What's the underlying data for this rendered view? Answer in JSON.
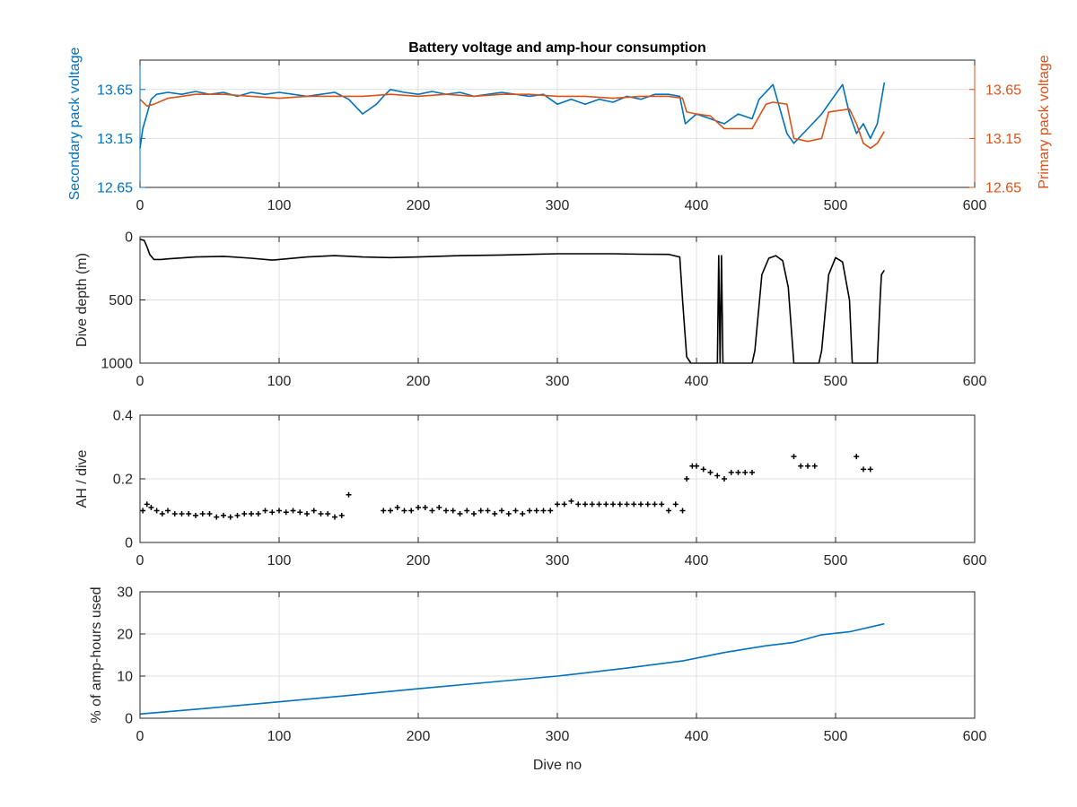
{
  "figure": {
    "title": "Battery voltage and amp-hour consumption",
    "xlabel": "Dive no"
  },
  "colors": {
    "blue": "#0072BD",
    "orange": "#D95319",
    "black": "#000000",
    "axis": "#262626",
    "grid": "#dfdfdf"
  },
  "chart_data": [
    {
      "type": "line",
      "title": "Battery voltage and amp-hour consumption",
      "xlabel": "",
      "ylabel": "Secondary pack voltage",
      "ylabel_right": "Primary pack voltage",
      "xlim": [
        0,
        600
      ],
      "ylim": [
        12.65,
        13.95
      ],
      "xticks": [
        0,
        100,
        200,
        300,
        400,
        500,
        600
      ],
      "yticks": [
        12.65,
        13.15,
        13.65
      ],
      "yticks_right": [
        12.65,
        13.15,
        13.65
      ],
      "grid": true,
      "series": [
        {
          "name": "Secondary pack voltage",
          "axis": "left",
          "color": "#0072BD",
          "x": [
            0,
            2,
            5,
            8,
            12,
            20,
            30,
            40,
            50,
            60,
            70,
            80,
            90,
            100,
            110,
            120,
            130,
            140,
            150,
            160,
            165,
            170,
            175,
            180,
            190,
            200,
            210,
            220,
            230,
            240,
            250,
            260,
            270,
            280,
            290,
            300,
            310,
            320,
            330,
            340,
            350,
            360,
            370,
            380,
            388,
            392,
            400,
            410,
            420,
            430,
            440,
            445,
            455,
            465,
            470,
            480,
            490,
            500,
            505,
            510,
            515,
            520,
            525,
            530,
            535
          ],
          "y": [
            13.05,
            13.25,
            13.4,
            13.55,
            13.6,
            13.62,
            13.6,
            13.63,
            13.6,
            13.62,
            13.58,
            13.62,
            13.6,
            13.62,
            13.6,
            13.58,
            13.6,
            13.62,
            13.55,
            13.4,
            13.45,
            13.5,
            13.58,
            13.65,
            13.62,
            13.6,
            13.63,
            13.6,
            13.62,
            13.58,
            13.6,
            13.62,
            13.6,
            13.58,
            13.6,
            13.5,
            13.55,
            13.5,
            13.55,
            13.52,
            13.58,
            13.55,
            13.6,
            13.6,
            13.58,
            13.3,
            13.4,
            13.35,
            13.3,
            13.4,
            13.35,
            13.55,
            13.7,
            13.2,
            13.1,
            13.25,
            13.4,
            13.6,
            13.7,
            13.4,
            13.2,
            13.3,
            13.15,
            13.3,
            13.72
          ]
        },
        {
          "name": "Primary pack voltage",
          "axis": "right",
          "color": "#D95319",
          "x": [
            0,
            5,
            10,
            20,
            30,
            40,
            50,
            60,
            80,
            100,
            120,
            140,
            160,
            180,
            200,
            220,
            240,
            260,
            280,
            300,
            320,
            340,
            360,
            380,
            390,
            393,
            400,
            410,
            420,
            430,
            440,
            450,
            455,
            465,
            470,
            480,
            490,
            495,
            510,
            515,
            520,
            525,
            530,
            535
          ],
          "y": [
            13.55,
            13.48,
            13.5,
            13.56,
            13.58,
            13.6,
            13.6,
            13.6,
            13.58,
            13.56,
            13.58,
            13.58,
            13.58,
            13.6,
            13.58,
            13.6,
            13.58,
            13.6,
            13.6,
            13.58,
            13.58,
            13.56,
            13.58,
            13.58,
            13.56,
            13.42,
            13.4,
            13.38,
            13.25,
            13.25,
            13.25,
            13.5,
            13.52,
            13.5,
            13.15,
            13.12,
            13.15,
            13.42,
            13.45,
            13.3,
            13.1,
            13.05,
            13.1,
            13.22
          ]
        }
      ]
    },
    {
      "type": "line",
      "xlabel": "",
      "ylabel": "Dive depth (m)",
      "xlim": [
        0,
        600
      ],
      "ylim": [
        0,
        1000
      ],
      "y_reversed": true,
      "xticks": [
        0,
        100,
        200,
        300,
        400,
        500,
        600
      ],
      "yticks": [
        0,
        500,
        1000
      ],
      "grid": true,
      "series": [
        {
          "color": "#000000",
          "x": [
            0,
            3,
            5,
            7,
            10,
            15,
            20,
            40,
            60,
            80,
            95,
            100,
            120,
            140,
            160,
            180,
            200,
            230,
            260,
            280,
            300,
            320,
            340,
            360,
            380,
            388,
            390,
            393,
            396,
            400,
            410,
            415,
            416,
            417,
            418,
            419,
            420,
            421,
            422,
            430,
            440,
            442,
            447,
            452,
            457,
            462,
            466,
            470,
            480,
            488,
            490,
            495,
            500,
            505,
            510,
            512,
            520,
            530,
            532,
            533,
            535
          ],
          "y": [
            20,
            30,
            80,
            140,
            180,
            180,
            175,
            160,
            155,
            170,
            185,
            180,
            160,
            150,
            160,
            165,
            160,
            150,
            145,
            140,
            135,
            135,
            135,
            138,
            140,
            160,
            500,
            950,
            1000,
            1000,
            1000,
            1000,
            150,
            1000,
            150,
            1000,
            1000,
            1000,
            1000,
            1000,
            1000,
            900,
            300,
            170,
            150,
            190,
            400,
            1000,
            1000,
            1000,
            900,
            300,
            165,
            200,
            500,
            1000,
            1000,
            1000,
            500,
            300,
            265
          ]
        }
      ]
    },
    {
      "type": "scatter",
      "xlabel": "",
      "ylabel": "AH / dive",
      "xlim": [
        0,
        600
      ],
      "ylim": [
        0,
        0.4
      ],
      "xticks": [
        0,
        100,
        200,
        300,
        400,
        500,
        600
      ],
      "yticks": [
        0,
        0.2,
        0.4
      ],
      "grid": true,
      "marker": "+",
      "series": [
        {
          "color": "#000000",
          "x": [
            2,
            5,
            8,
            12,
            16,
            20,
            25,
            30,
            35,
            40,
            45,
            50,
            55,
            60,
            65,
            70,
            75,
            80,
            85,
            90,
            95,
            100,
            105,
            110,
            115,
            120,
            125,
            130,
            135,
            140,
            145,
            150,
            175,
            180,
            185,
            190,
            195,
            200,
            205,
            210,
            215,
            220,
            225,
            230,
            235,
            240,
            245,
            250,
            255,
            260,
            265,
            270,
            275,
            280,
            285,
            290,
            295,
            300,
            305,
            310,
            315,
            320,
            325,
            330,
            335,
            340,
            345,
            350,
            355,
            360,
            365,
            370,
            375,
            380,
            385,
            390,
            393,
            397,
            400,
            405,
            410,
            415,
            420,
            425,
            430,
            435,
            440,
            470,
            475,
            480,
            485,
            515,
            520,
            525
          ],
          "y": [
            0.1,
            0.12,
            0.11,
            0.1,
            0.09,
            0.1,
            0.09,
            0.09,
            0.09,
            0.085,
            0.09,
            0.09,
            0.08,
            0.085,
            0.08,
            0.085,
            0.09,
            0.09,
            0.09,
            0.1,
            0.095,
            0.1,
            0.095,
            0.1,
            0.095,
            0.09,
            0.1,
            0.09,
            0.09,
            0.08,
            0.085,
            0.15,
            0.1,
            0.1,
            0.11,
            0.1,
            0.1,
            0.11,
            0.11,
            0.1,
            0.11,
            0.1,
            0.1,
            0.09,
            0.1,
            0.09,
            0.1,
            0.1,
            0.09,
            0.1,
            0.09,
            0.1,
            0.09,
            0.1,
            0.1,
            0.1,
            0.1,
            0.12,
            0.12,
            0.13,
            0.12,
            0.12,
            0.12,
            0.12,
            0.12,
            0.12,
            0.12,
            0.12,
            0.12,
            0.12,
            0.12,
            0.12,
            0.12,
            0.1,
            0.12,
            0.1,
            0.2,
            0.24,
            0.24,
            0.23,
            0.22,
            0.21,
            0.2,
            0.22,
            0.22,
            0.22,
            0.22,
            0.27,
            0.24,
            0.24,
            0.24,
            0.27,
            0.23,
            0.23
          ]
        }
      ]
    },
    {
      "type": "line",
      "xlabel": "Dive no",
      "ylabel": "% of amp-hours used",
      "xlim": [
        0,
        600
      ],
      "ylim": [
        0,
        30
      ],
      "xticks": [
        0,
        100,
        200,
        300,
        400,
        500,
        600
      ],
      "yticks": [
        0,
        10,
        20,
        30
      ],
      "grid": true,
      "series": [
        {
          "color": "#0072BD",
          "x": [
            0,
            50,
            100,
            150,
            200,
            250,
            300,
            350,
            390,
            420,
            450,
            470,
            490,
            510,
            535
          ],
          "y": [
            1.0,
            2.4,
            3.9,
            5.4,
            7.0,
            8.5,
            10.0,
            11.9,
            13.6,
            15.6,
            17.2,
            18.0,
            19.8,
            20.5,
            22.4
          ]
        }
      ]
    }
  ]
}
